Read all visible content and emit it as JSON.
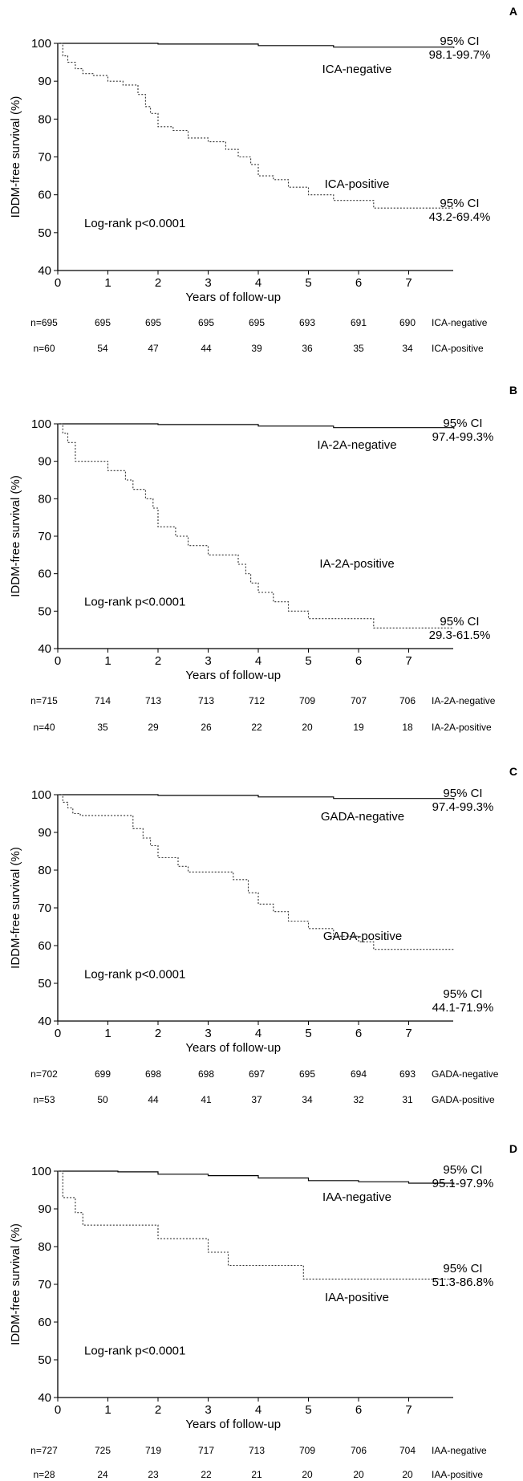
{
  "chart_data": [
    {
      "type": "line",
      "panel_label": "A",
      "xlabel": "Years of follow-up",
      "ylabel": "IDDM-free survival (%)",
      "ylim": [
        40,
        100
      ],
      "xlim": [
        0,
        8
      ],
      "x_ticks": [
        "0",
        "1",
        "2",
        "3",
        "4",
        "5",
        "6",
        "7"
      ],
      "y_ticks": [
        "40",
        "50",
        "60",
        "70",
        "80",
        "90",
        "100"
      ],
      "annotation": "Log-rank p<0.0001",
      "series": [
        {
          "name": "ICA-negative",
          "style": "solid",
          "x": [
            0,
            2,
            4,
            5.5,
            7.9
          ],
          "y": [
            100,
            99.8,
            99.4,
            99,
            98.8
          ],
          "ci_label": "95% CI",
          "ci": "98.1-99.7%"
        },
        {
          "name": "ICA-positive",
          "style": "dotted",
          "x": [
            0,
            0.1,
            0.2,
            0.35,
            0.5,
            0.7,
            1.0,
            1.3,
            1.6,
            1.75,
            1.85,
            2.0,
            2.3,
            2.6,
            3.0,
            3.35,
            3.6,
            3.85,
            4.0,
            4.3,
            4.6,
            5.0,
            5.5,
            6.3,
            7.9
          ],
          "y": [
            100,
            96.7,
            95,
            93.3,
            92,
            91.5,
            90,
            89,
            86.5,
            83.3,
            81.5,
            78,
            77,
            75,
            74,
            72,
            70,
            68,
            65,
            64,
            62,
            60,
            58.5,
            56.5,
            56.5
          ],
          "ci_label": "95% CI",
          "ci": "43.2-69.4%"
        }
      ],
      "risk_table": {
        "rows": [
          {
            "label": "ICA-negative",
            "values": [
              "n=695",
              "695",
              "695",
              "695",
              "695",
              "693",
              "691",
              "690"
            ]
          },
          {
            "label": "ICA-positive",
            "values": [
              "n=60",
              "54",
              "47",
              "44",
              "39",
              "36",
              "35",
              "34"
            ]
          }
        ]
      }
    },
    {
      "type": "line",
      "panel_label": "B",
      "xlabel": "Years of follow-up",
      "ylabel": "IDDM-free survival (%)",
      "ylim": [
        40,
        100
      ],
      "xlim": [
        0,
        8
      ],
      "x_ticks": [
        "0",
        "1",
        "2",
        "3",
        "4",
        "5",
        "6",
        "7"
      ],
      "y_ticks": [
        "40",
        "50",
        "60",
        "70",
        "80",
        "90",
        "100"
      ],
      "annotation": "Log-rank p<0.0001",
      "series": [
        {
          "name": "IA-2A-negative",
          "style": "solid",
          "x": [
            0,
            2,
            4,
            5.5,
            7.9
          ],
          "y": [
            100,
            99.8,
            99.4,
            99,
            98.7
          ],
          "ci_label": "95% CI",
          "ci": "97.4-99.3%"
        },
        {
          "name": "IA-2A-positive",
          "style": "dotted",
          "x": [
            0,
            0.1,
            0.2,
            0.35,
            1.0,
            1.35,
            1.5,
            1.75,
            1.9,
            2.0,
            2.35,
            2.6,
            3.0,
            3.6,
            3.75,
            3.85,
            4.0,
            4.3,
            4.6,
            5.0,
            5.6,
            6.3,
            7.9
          ],
          "y": [
            100,
            97.5,
            95,
            90,
            87.5,
            85,
            82.5,
            80,
            77.5,
            72.5,
            70,
            67.5,
            65,
            62.5,
            60,
            57.5,
            55,
            52.5,
            50,
            48,
            48,
            45.5,
            45.5
          ],
          "ci_label": "95% CI",
          "ci": "29.3-61.5%"
        }
      ],
      "risk_table": {
        "rows": [
          {
            "label": "IA-2A-negative",
            "values": [
              "n=715",
              "714",
              "713",
              "713",
              "712",
              "709",
              "707",
              "706"
            ]
          },
          {
            "label": "IA-2A-positive",
            "values": [
              "n=40",
              "35",
              "29",
              "26",
              "22",
              "20",
              "19",
              "18"
            ]
          }
        ]
      }
    },
    {
      "type": "line",
      "panel_label": "C",
      "xlabel": "Years of follow-up",
      "ylabel": "IDDM-free survival (%)",
      "ylim": [
        40,
        100
      ],
      "xlim": [
        0,
        8
      ],
      "x_ticks": [
        "0",
        "1",
        "2",
        "3",
        "4",
        "5",
        "6",
        "7"
      ],
      "y_ticks": [
        "40",
        "50",
        "60",
        "70",
        "80",
        "90",
        "100"
      ],
      "annotation": "Log-rank p<0.0001",
      "series": [
        {
          "name": "GADA-negative",
          "style": "solid",
          "x": [
            0,
            2,
            4,
            5.5,
            7.9
          ],
          "y": [
            100,
            99.8,
            99.4,
            99,
            98.7
          ],
          "ci_label": "95% CI",
          "ci": "97.4-99.3%"
        },
        {
          "name": "GADA-positive",
          "style": "dotted",
          "x": [
            0,
            0.1,
            0.2,
            0.3,
            0.45,
            0.6,
            1.0,
            1.5,
            1.7,
            1.85,
            2.0,
            2.4,
            2.6,
            3.0,
            3.5,
            3.8,
            4.0,
            4.3,
            4.6,
            5.0,
            5.5,
            6.0,
            6.3,
            7.9
          ],
          "y": [
            100,
            98,
            96.5,
            95,
            94.5,
            94.5,
            94.5,
            91,
            88.5,
            86.5,
            83.3,
            81,
            79.5,
            79.5,
            77.5,
            74,
            71,
            69,
            66.5,
            64.5,
            62.5,
            61,
            59,
            59
          ],
          "ci_label": "95% CI",
          "ci": "44.1-71.9%"
        }
      ],
      "risk_table": {
        "rows": [
          {
            "label": "GADA-negative",
            "values": [
              "n=702",
              "699",
              "698",
              "698",
              "697",
              "695",
              "694",
              "693"
            ]
          },
          {
            "label": "GADA-positive",
            "values": [
              "n=53",
              "50",
              "44",
              "41",
              "37",
              "34",
              "32",
              "31"
            ]
          }
        ]
      }
    },
    {
      "type": "line",
      "panel_label": "D",
      "xlabel": "Years of follow-up",
      "ylabel": "IDDM-free survival (%)",
      "ylim": [
        40,
        100
      ],
      "xlim": [
        0,
        8
      ],
      "x_ticks": [
        "0",
        "1",
        "2",
        "3",
        "4",
        "5",
        "6",
        "7"
      ],
      "y_ticks": [
        "40",
        "50",
        "60",
        "70",
        "80",
        "90",
        "100"
      ],
      "annotation": "Log-rank p<0.0001",
      "series": [
        {
          "name": "IAA-negative",
          "style": "solid",
          "x": [
            0,
            1.2,
            2.0,
            3.0,
            4.0,
            5.0,
            6.0,
            7.0,
            7.9
          ],
          "y": [
            100,
            99.8,
            99.2,
            98.8,
            98.2,
            97.5,
            97.2,
            96.8,
            96.5
          ],
          "ci_label": "95% CI",
          "ci": "95.1-97.9%"
        },
        {
          "name": "IAA-positive",
          "style": "dotted",
          "x": [
            0,
            0.1,
            0.35,
            0.5,
            2.0,
            3.0,
            3.4,
            4.9,
            7.9
          ],
          "y": [
            100,
            93,
            89,
            85.7,
            82.1,
            78.5,
            75,
            71.4,
            71.4
          ],
          "ci_label": "95% CI",
          "ci": "51.3-86.8%"
        }
      ],
      "risk_table": {
        "rows": [
          {
            "label": "IAA-negative",
            "values": [
              "n=727",
              "725",
              "719",
              "717",
              "713",
              "709",
              "706",
              "704"
            ]
          },
          {
            "label": "IAA-positive",
            "values": [
              "n=28",
              "24",
              "23",
              "22",
              "21",
              "20",
              "20",
              "20"
            ]
          }
        ]
      }
    }
  ]
}
